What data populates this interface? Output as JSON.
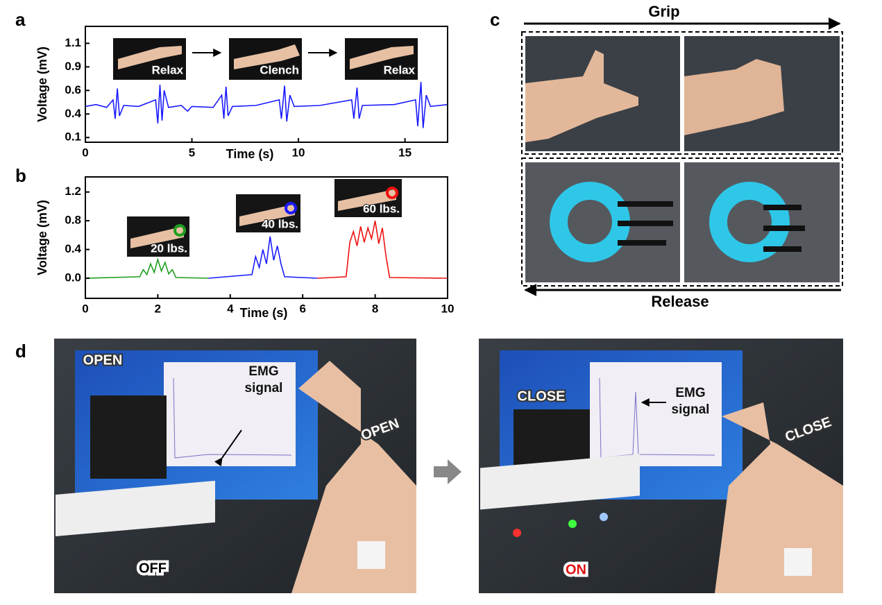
{
  "panel_labels": [
    "a",
    "b",
    "c",
    "d"
  ],
  "chart_data": [
    {
      "type": "line",
      "ylabel": "Voltage (mV)",
      "xlabel": "Time (s)",
      "color": "#1a1aff",
      "annotations": [
        "Relax",
        "Clench",
        "Relax"
      ],
      "xlim": [
        0,
        17
      ],
      "xticks": [
        0,
        5,
        10,
        15
      ],
      "ylim": [
        0.05,
        1.28
      ],
      "yticks": [
        0.1,
        {
          "value": 0.35,
          "label": "0.4"
        },
        0.6,
        {
          "value": 0.85,
          "label": "0.9"
        },
        1.1
      ],
      "x": [
        0,
        0.5,
        1.0,
        1.3,
        1.4,
        1.5,
        1.6,
        1.8,
        2.5,
        3.3,
        3.4,
        3.5,
        3.6,
        3.7,
        3.9,
        4.5,
        4.8,
        5.0,
        6.0,
        6.4,
        6.5,
        6.6,
        6.7,
        6.9,
        8.0,
        9.1,
        9.2,
        9.35,
        9.45,
        9.6,
        9.8,
        11.0,
        12.5,
        12.6,
        12.75,
        12.85,
        13.0,
        14.5,
        15.5,
        15.6,
        15.75,
        15.85,
        16.0,
        16.2,
        17.0
      ],
      "values": [
        0.43,
        0.45,
        0.42,
        0.5,
        0.3,
        0.62,
        0.33,
        0.44,
        0.43,
        0.5,
        0.25,
        0.66,
        0.28,
        0.6,
        0.42,
        0.44,
        0.38,
        0.43,
        0.42,
        0.55,
        0.3,
        0.64,
        0.33,
        0.43,
        0.44,
        0.5,
        0.3,
        0.65,
        0.27,
        0.55,
        0.43,
        0.44,
        0.5,
        0.3,
        0.63,
        0.3,
        0.44,
        0.45,
        0.5,
        0.22,
        0.69,
        0.2,
        0.55,
        0.43,
        0.45
      ]
    },
    {
      "type": "line",
      "ylabel": "Voltage (mV)",
      "xlabel": "Time (s)",
      "xlim": [
        0,
        10
      ],
      "xticks": [
        0,
        2,
        4,
        6,
        8,
        10
      ],
      "ylim": [
        -0.28,
        1.41
      ],
      "yticks": [
        {
          "value": 0,
          "label": "0.0"
        },
        0.4,
        0.8,
        1.2
      ],
      "series": [
        {
          "name": "20 lbs.",
          "color": "#1f9e1f",
          "x": [
            0,
            1.5,
            1.6,
            1.7,
            1.8,
            1.9,
            2.0,
            2.1,
            2.2,
            2.3,
            2.4,
            2.5,
            3.4
          ],
          "values": [
            0,
            0.02,
            0.12,
            0.05,
            0.2,
            0.08,
            0.26,
            0.1,
            0.22,
            0.06,
            0.12,
            0.01,
            0
          ]
        },
        {
          "name": "40 lbs.",
          "color": "#1a1aff",
          "x": [
            3.4,
            4.6,
            4.7,
            4.8,
            4.9,
            5.0,
            5.1,
            5.2,
            5.3,
            5.4,
            5.5,
            6.4
          ],
          "values": [
            0,
            0.05,
            0.3,
            0.15,
            0.4,
            0.2,
            0.58,
            0.25,
            0.45,
            0.2,
            0.02,
            0
          ]
        },
        {
          "name": "60 lbs.",
          "color": "#ee1111",
          "x": [
            6.4,
            7.2,
            7.3,
            7.4,
            7.5,
            7.6,
            7.7,
            7.8,
            7.9,
            8.0,
            8.1,
            8.2,
            8.3,
            8.4,
            10
          ],
          "values": [
            0,
            0.02,
            0.5,
            0.65,
            0.45,
            0.72,
            0.5,
            0.7,
            0.55,
            0.8,
            0.48,
            0.7,
            0.3,
            0.01,
            0
          ]
        }
      ]
    }
  ],
  "panel_c": {
    "top_label": "Grip",
    "bottom_label": "Release"
  },
  "panel_d": {
    "left": {
      "robot": "OPEN",
      "screen": [
        "EMG",
        "signal"
      ],
      "arm": "OPEN",
      "switch": "OFF"
    },
    "right": {
      "robot": "CLOSE",
      "screen": [
        "EMG",
        "signal"
      ],
      "arm": "CLOSE",
      "switch": "ON"
    }
  }
}
